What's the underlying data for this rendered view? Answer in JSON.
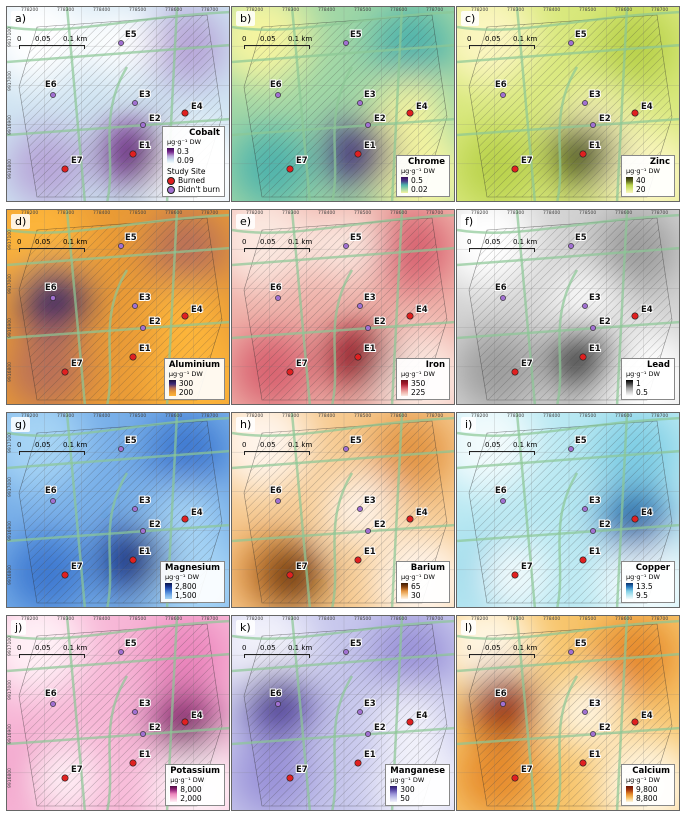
{
  "scale": {
    "t0": "0",
    "t1": "0.05",
    "t2": "0.1 km"
  },
  "axes": {
    "x_ticks": [
      "778200",
      "778300",
      "778400",
      "778500",
      "778600",
      "778700"
    ],
    "y_ticks": [
      "9917100",
      "9917000",
      "9916900",
      "9916800"
    ]
  },
  "sites": [
    {
      "id": "E1",
      "type": "Burned"
    },
    {
      "id": "E2",
      "type": "Didn't burn"
    },
    {
      "id": "E3",
      "type": "Didn't burn"
    },
    {
      "id": "E4",
      "type": "Burned"
    },
    {
      "id": "E5",
      "type": "Didn't burn"
    },
    {
      "id": "E6",
      "type": "Didn't burn"
    },
    {
      "id": "E7",
      "type": "Burned"
    }
  ],
  "legend_common": {
    "unit": "µg·g⁻¹ DW",
    "study_site": "Study Site",
    "burned": "Burned",
    "didnt_burn": "Didn't burn"
  },
  "colors": {
    "burned": "#e02020",
    "didnt_burn": "#a070d0"
  },
  "panels": [
    {
      "label": "a)",
      "element": "Cobalt",
      "high": "0.3",
      "low": "0.09",
      "show_sites": true,
      "palette": [
        "#ffffff",
        "#cfe4f2",
        "#b7a5d8",
        "#7a2a90",
        "#3d0a55"
      ],
      "high_site": "E1",
      "low_site": "E5"
    },
    {
      "label": "b)",
      "element": "Chrome",
      "high": "0.5",
      "low": "0.02",
      "show_sites": false,
      "palette": [
        "#f4f4a0",
        "#9ed6a6",
        "#4fb3ac",
        "#4a3a8a",
        "#3b0f5e"
      ],
      "high_site": "E1",
      "low_site": "E4"
    },
    {
      "label": "c)",
      "element": "Zinc",
      "high": "40",
      "low": "20",
      "show_sites": false,
      "palette": [
        "#fbf6c0",
        "#d8e87c",
        "#b9d24c",
        "#5e6a1c",
        "#2a2a0a"
      ],
      "high_site": "E1",
      "low_site": "E2"
    },
    {
      "label": "d)",
      "element": "Aluminium",
      "high": "300",
      "low": "200",
      "show_sites": false,
      "palette": [
        "#fdb53a",
        "#e99a36",
        "#b97058",
        "#3d2a7a",
        "#1e103c"
      ],
      "high_site": "E6",
      "low_site": "E4"
    },
    {
      "label": "e)",
      "element": "Iron",
      "high": "350",
      "low": "225",
      "show_sites": false,
      "palette": [
        "#fbe8e0",
        "#efb0a8",
        "#d86270",
        "#a51a2c",
        "#70101c"
      ],
      "high_site": "E1",
      "low_site": "E5"
    },
    {
      "label": "f)",
      "element": "Lead",
      "high": "1",
      "low": "0.5",
      "show_sites": false,
      "palette": [
        "#ffffff",
        "#d2d2d2",
        "#9c9c9c",
        "#4a4a4a",
        "#000000"
      ],
      "high_site": "E1",
      "low_site": "E3"
    },
    {
      "label": "g)",
      "element": "Magnesium",
      "high": "2,800",
      "low": "1,500",
      "show_sites": false,
      "palette": [
        "#a6d4f5",
        "#77aee8",
        "#3e78d0",
        "#1a3c9a",
        "#07124a"
      ],
      "high_site": "E1",
      "low_site": "E4"
    },
    {
      "label": "h)",
      "element": "Barium",
      "high": "65",
      "low": "30",
      "show_sites": false,
      "palette": [
        "#fff4ea",
        "#f6c98e",
        "#e39442",
        "#8a4510",
        "#3a1a04"
      ],
      "high_site": "E7",
      "low_site": "E3"
    },
    {
      "label": "i)",
      "element": "Copper",
      "high": "13.5",
      "low": "9.5",
      "show_sites": false,
      "palette": [
        "#f2fbfd",
        "#b8e8f2",
        "#7ecde4",
        "#2b7ec2",
        "#08306b"
      ],
      "high_site": "E4",
      "low_site": "E7"
    },
    {
      "label": "j)",
      "element": "Potassium",
      "high": "8,000",
      "low": "2,000",
      "show_sites": false,
      "palette": [
        "#fff0f6",
        "#f7b6d6",
        "#ec86bd",
        "#9a2a7e",
        "#4d0a40"
      ],
      "high_site": "E4",
      "low_site": "E7"
    },
    {
      "label": "k)",
      "element": "Manganese",
      "high": "300",
      "low": "50",
      "show_sites": false,
      "palette": [
        "#f2f2fb",
        "#c6c6ec",
        "#9a92d8",
        "#5a4aa8",
        "#2d1c6a"
      ],
      "high_site": "E6",
      "low_site": "E4"
    },
    {
      "label": "l)",
      "element": "Calcium",
      "high": "9,800",
      "low": "8,800",
      "show_sites": false,
      "palette": [
        "#fff6e2",
        "#f7c46a",
        "#e68a2a",
        "#a8360c",
        "#6c1404"
      ],
      "high_site": "E6",
      "low_site": "E3"
    }
  ]
}
